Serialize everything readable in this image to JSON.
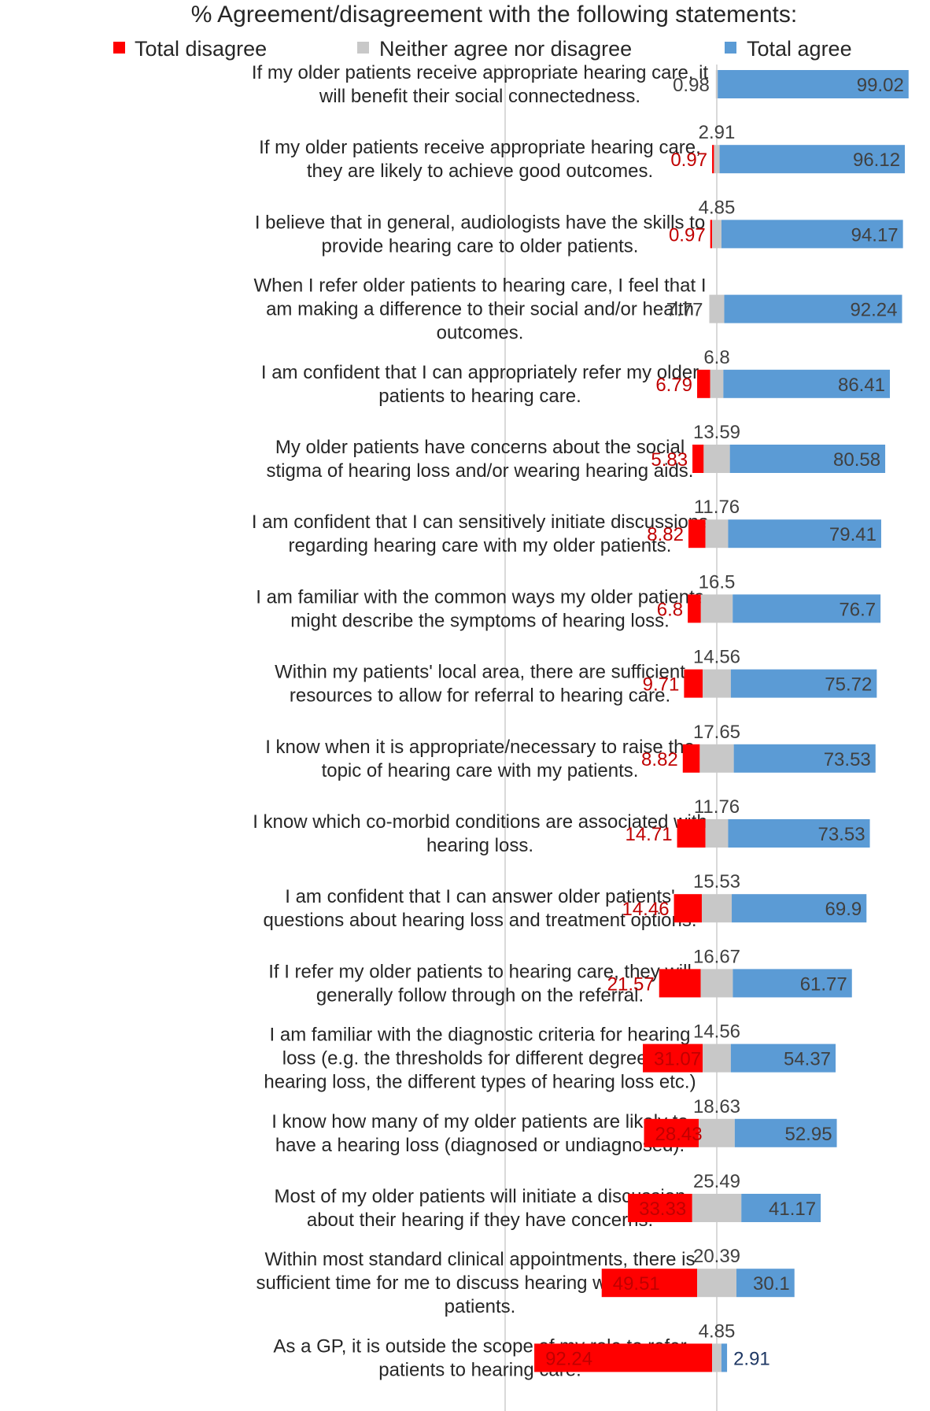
{
  "chart_data": {
    "type": "bar",
    "orientation": "horizontal-diverging-stacked",
    "title": "% Agreement/disagreement with the following statements:",
    "legend": [
      "Total disagree",
      "Neither agree nor disagree",
      "Total agree"
    ],
    "colors": {
      "disagree": "#ff0000",
      "neutral": "#c8c8c8",
      "agree": "#5b9bd5",
      "disagree_label": "#c00000",
      "neutral_label": "#404040",
      "agree_label": "#1f3864"
    },
    "categories": [
      [
        "If my older patients receive appropriate hearing care, it",
        "will benefit their social connectedness."
      ],
      [
        "If my older patients receive appropriate hearing care,",
        "they are likely to achieve good outcomes."
      ],
      [
        "I believe that in general, audiologists have the skills to",
        "provide hearing care to older patients."
      ],
      [
        "When I refer older patients to hearing care, I feel that I",
        "am making a difference to their social and/or health",
        "outcomes."
      ],
      [
        "I am confident that I can appropriately refer my older",
        "patients to hearing care."
      ],
      [
        "My older patients have concerns about the social",
        "stigma of hearing loss and/or wearing hearing aids."
      ],
      [
        "I am confident that I can sensitively initiate discussions",
        "regarding hearing care with my older patients."
      ],
      [
        "I am familiar with the common ways my older patients",
        "might describe the symptoms of hearing loss."
      ],
      [
        "Within my patients' local area, there are sufficient",
        "resources to allow for referral to hearing care."
      ],
      [
        "I know when it is appropriate/necessary to raise the",
        "topic of hearing care with my patients."
      ],
      [
        "I know which co-morbid conditions are associated with",
        "hearing loss."
      ],
      [
        "I am confident that I can answer older patients'",
        "questions about hearing loss and treatment options."
      ],
      [
        "If I refer my older patients to hearing care, they will",
        "generally follow through on the referral."
      ],
      [
        "I am familiar with the diagnostic criteria for hearing",
        "loss (e.g. the thresholds for different degrees of",
        "hearing loss, the different types of hearing loss etc.)"
      ],
      [
        "I know how many of my older patients are likely to",
        "have a hearing loss (diagnosed or undiagnosed)."
      ],
      [
        "Most of my older patients will initiate a discussion",
        "about their hearing if they have concerns."
      ],
      [
        "Within most standard clinical appointments, there is",
        "sufficient time for me to discuss hearing with my older",
        "patients."
      ],
      [
        "As a GP, it is outside the scope of my role to refer",
        "patients to hearing care."
      ]
    ],
    "series": [
      {
        "name": "Total disagree",
        "values": [
          null,
          0.97,
          0.97,
          null,
          6.79,
          5.83,
          8.82,
          6.8,
          9.71,
          8.82,
          14.71,
          14.46,
          21.57,
          31.07,
          28.43,
          33.33,
          49.51,
          92.24
        ],
        "labels": [
          "",
          "0.97",
          "0.97",
          "",
          "6.79",
          "5.83",
          "8.82",
          "6.8",
          "9.71",
          "8.82",
          "14.71",
          "14.46",
          "21.57",
          "31.07",
          "28.43",
          "33.33",
          "49.51",
          "92.24"
        ]
      },
      {
        "name": "Neither agree nor disagree",
        "values": [
          0.98,
          2.91,
          4.85,
          7.77,
          6.8,
          13.59,
          11.76,
          16.5,
          14.56,
          17.65,
          11.76,
          15.53,
          16.67,
          14.56,
          18.63,
          25.49,
          20.39,
          4.85
        ],
        "labels": [
          "0.98",
          "2.91",
          "4.85",
          "7.77",
          "6.8",
          "13.59",
          "11.76",
          "16.5",
          "14.56",
          "17.65",
          "11.76",
          "15.53",
          "16.67",
          "14.56",
          "18.63",
          "25.49",
          "20.39",
          "4.85"
        ]
      },
      {
        "name": "Total agree",
        "values": [
          99.02,
          96.12,
          94.17,
          92.24,
          86.41,
          80.58,
          79.41,
          76.7,
          75.72,
          73.53,
          73.53,
          69.9,
          61.77,
          54.37,
          52.95,
          41.17,
          30.1,
          2.91
        ],
        "labels": [
          "99.02",
          "96.12",
          "94.17",
          "92.24",
          "86.41",
          "80.58",
          "79.41",
          "76.7",
          "75.72",
          "73.53",
          "73.53",
          "69.9",
          "61.77",
          "54.37",
          "52.95",
          "41.17",
          "30.1",
          "2.91"
        ]
      }
    ],
    "xlim": [
      -100,
      100
    ],
    "xlabel": "",
    "ylabel": ""
  }
}
